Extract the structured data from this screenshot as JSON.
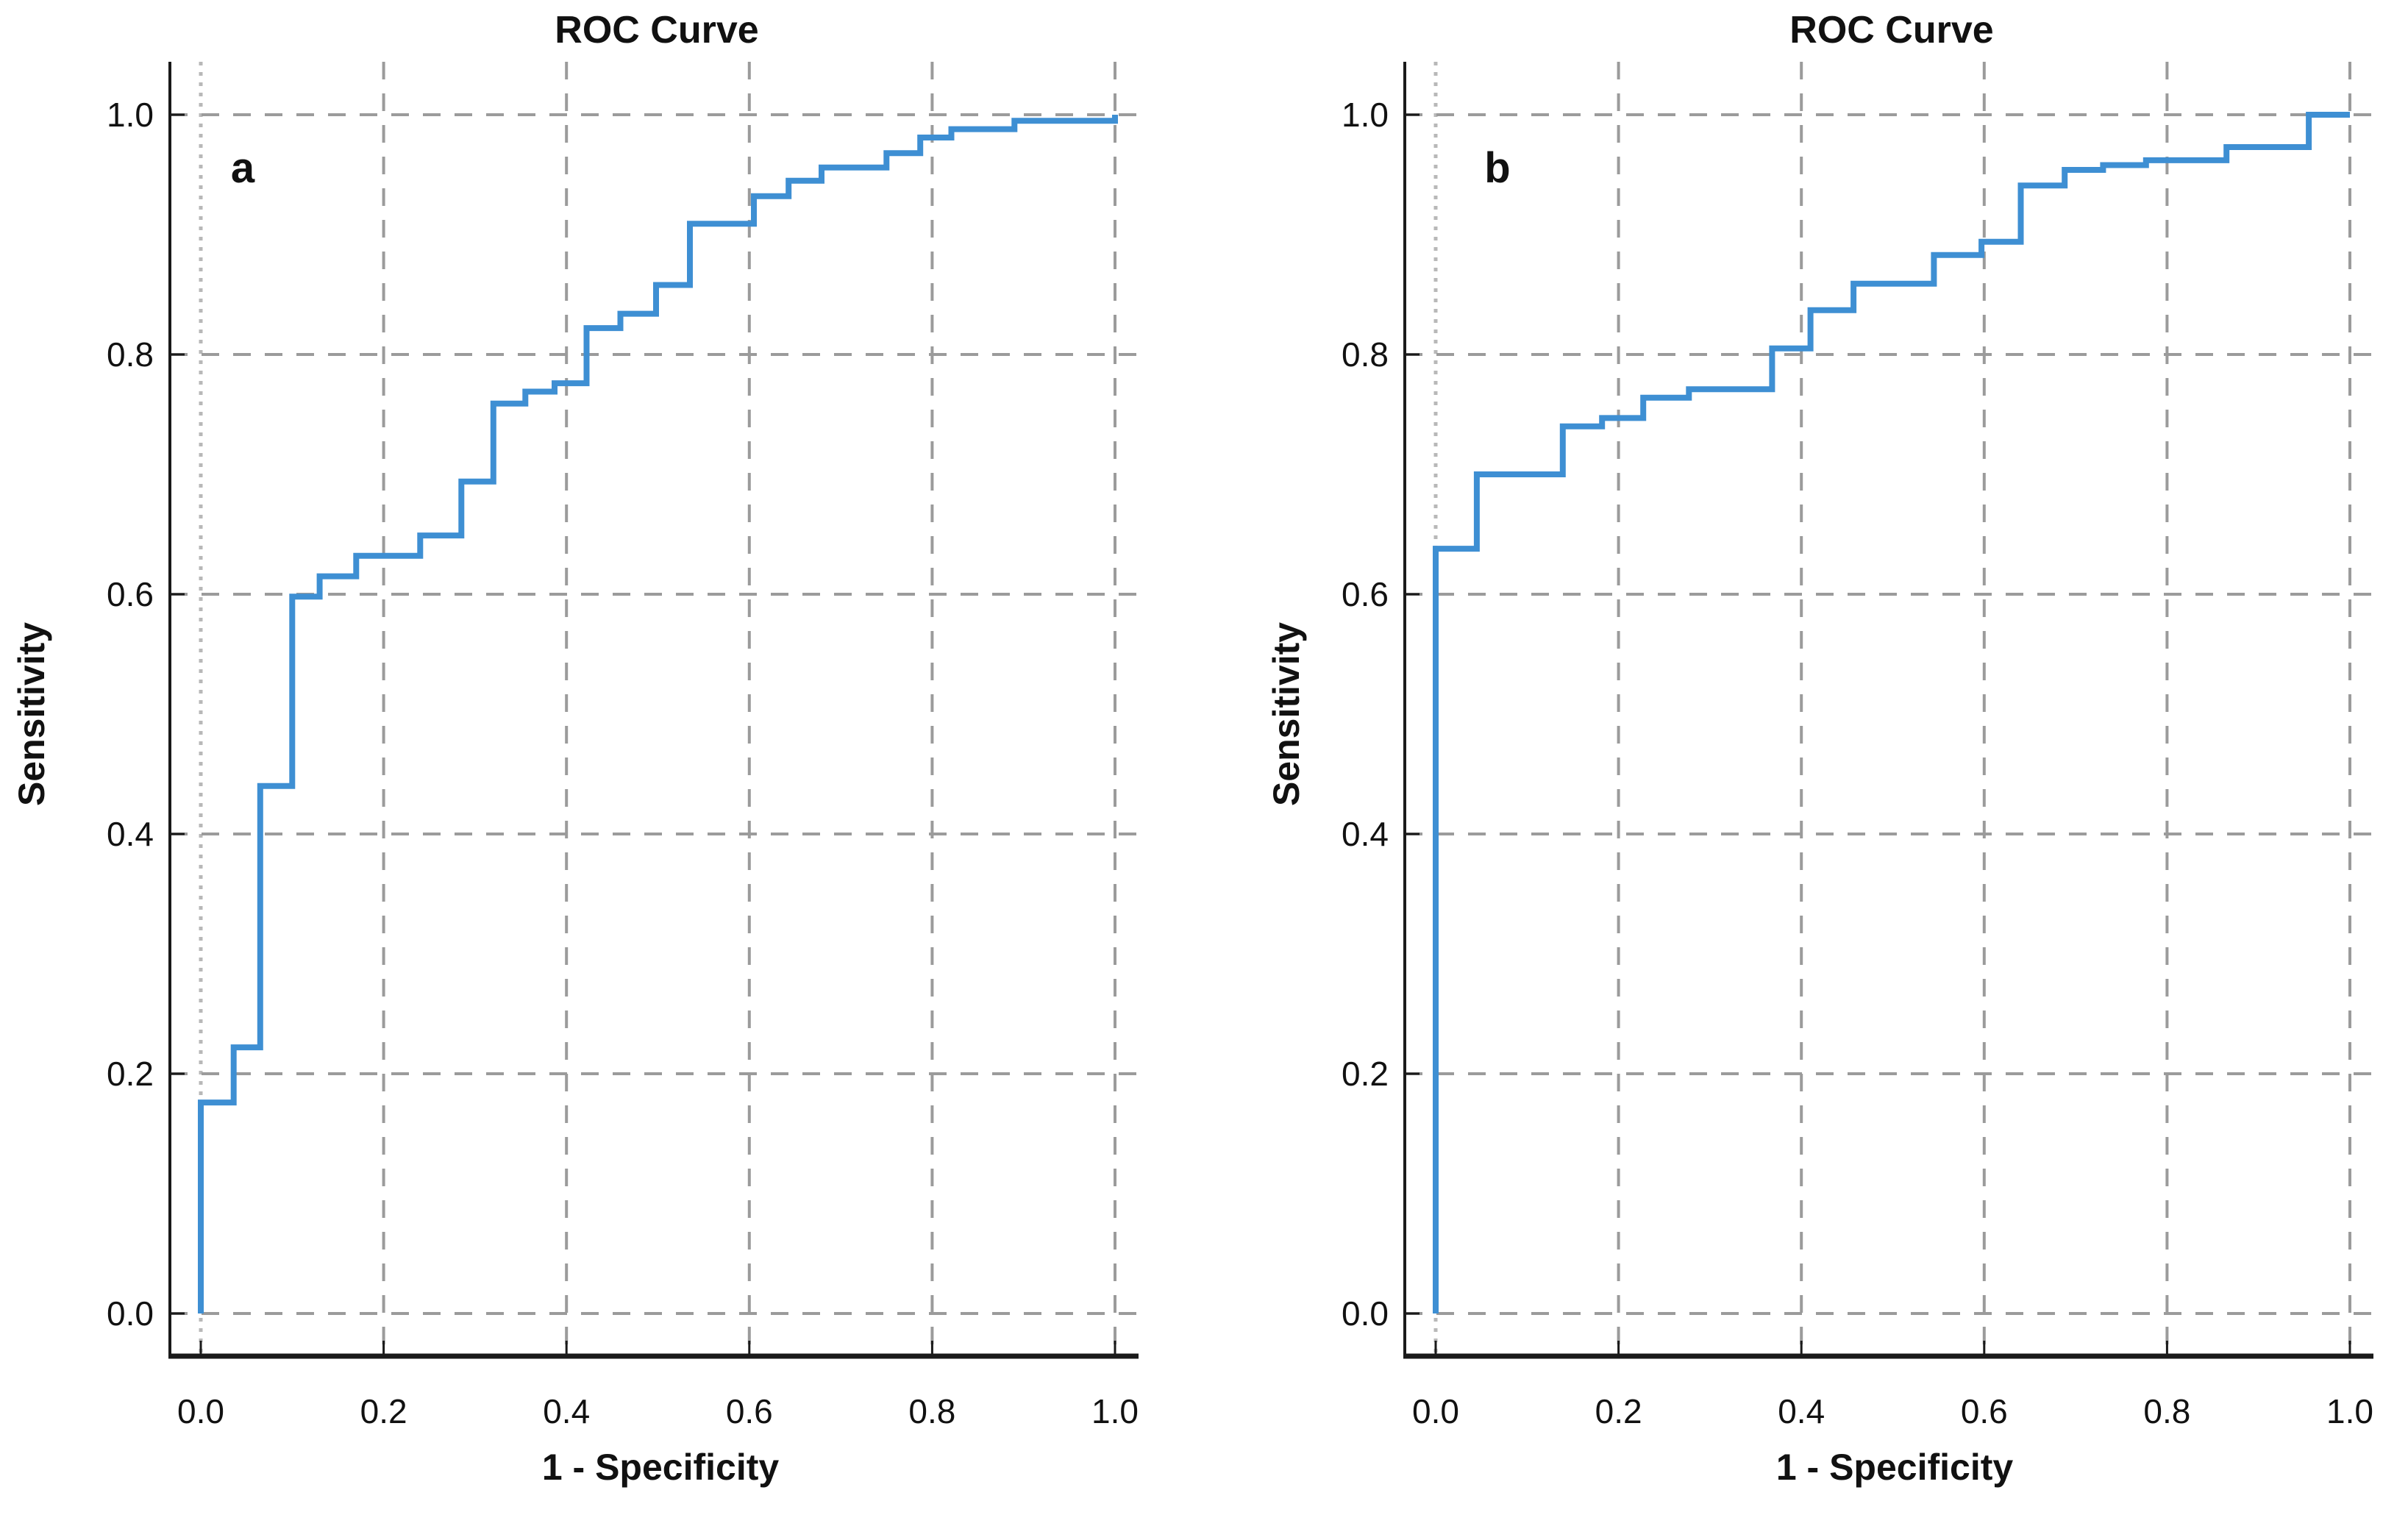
{
  "figure": {
    "background": "#ffffff",
    "text_color": "#111111",
    "gridline_color": "#9b9b9b",
    "zero_gridline_color": "#b8b8b8",
    "spine_color": "#1a1a1a"
  },
  "chart_data": [
    {
      "type": "line",
      "subtype": "roc_step_curve",
      "panel_label": "a",
      "title": "ROC Curve",
      "xlabel": "1 - Specificity",
      "ylabel": "Sensitivity",
      "xlim": [
        0.0,
        1.0
      ],
      "ylim": [
        0.0,
        1.0
      ],
      "xticks": [
        0.0,
        0.2,
        0.4,
        0.6,
        0.8,
        1.0
      ],
      "yticks": [
        0.0,
        0.2,
        0.4,
        0.6,
        0.8,
        1.0
      ],
      "xtick_labels": [
        "0.0",
        "0.2",
        "0.4",
        "0.6",
        "0.8",
        "1.0"
      ],
      "ytick_labels": [
        "0.0",
        "0.2",
        "0.4",
        "0.6",
        "0.8",
        "1.0"
      ],
      "grid": "dashed",
      "legend": "none",
      "line_color": "#3e8fd3",
      "points": [
        [
          0.0,
          0.0
        ],
        [
          0.0,
          0.176
        ],
        [
          0.036,
          0.176
        ],
        [
          0.036,
          0.222
        ],
        [
          0.065,
          0.222
        ],
        [
          0.065,
          0.44
        ],
        [
          0.1,
          0.44
        ],
        [
          0.1,
          0.598
        ],
        [
          0.13,
          0.598
        ],
        [
          0.13,
          0.615
        ],
        [
          0.17,
          0.615
        ],
        [
          0.17,
          0.632
        ],
        [
          0.24,
          0.632
        ],
        [
          0.24,
          0.649
        ],
        [
          0.285,
          0.649
        ],
        [
          0.285,
          0.694
        ],
        [
          0.32,
          0.694
        ],
        [
          0.32,
          0.759
        ],
        [
          0.355,
          0.759
        ],
        [
          0.355,
          0.769
        ],
        [
          0.387,
          0.769
        ],
        [
          0.387,
          0.776
        ],
        [
          0.422,
          0.776
        ],
        [
          0.422,
          0.822
        ],
        [
          0.459,
          0.822
        ],
        [
          0.459,
          0.834
        ],
        [
          0.498,
          0.834
        ],
        [
          0.498,
          0.858
        ],
        [
          0.535,
          0.858
        ],
        [
          0.535,
          0.909
        ],
        [
          0.605,
          0.909
        ],
        [
          0.605,
          0.932
        ],
        [
          0.643,
          0.932
        ],
        [
          0.643,
          0.945
        ],
        [
          0.679,
          0.945
        ],
        [
          0.679,
          0.956
        ],
        [
          0.75,
          0.956
        ],
        [
          0.75,
          0.968
        ],
        [
          0.787,
          0.968
        ],
        [
          0.787,
          0.981
        ],
        [
          0.821,
          0.981
        ],
        [
          0.821,
          0.988
        ],
        [
          0.89,
          0.988
        ],
        [
          0.89,
          0.995
        ],
        [
          1.0,
          0.995
        ],
        [
          1.0,
          1.0
        ]
      ]
    },
    {
      "type": "line",
      "subtype": "roc_step_curve",
      "panel_label": "b",
      "title": "ROC Curve",
      "xlabel": "1 - Specificity",
      "ylabel": "Sensitivity",
      "xlim": [
        0.0,
        1.0
      ],
      "ylim": [
        0.0,
        1.0
      ],
      "xticks": [
        0.0,
        0.2,
        0.4,
        0.6,
        0.8,
        1.0
      ],
      "yticks": [
        0.0,
        0.2,
        0.4,
        0.6,
        0.8,
        1.0
      ],
      "xtick_labels": [
        "0.0",
        "0.2",
        "0.4",
        "0.6",
        "0.8",
        "1.0"
      ],
      "ytick_labels": [
        "0.0",
        "0.2",
        "0.4",
        "0.6",
        "0.8",
        "1.0"
      ],
      "grid": "dashed",
      "legend": "none",
      "line_color": "#3e8fd3",
      "points": [
        [
          0.0,
          0.0
        ],
        [
          0.0,
          0.638
        ],
        [
          0.045,
          0.638
        ],
        [
          0.045,
          0.7
        ],
        [
          0.139,
          0.7
        ],
        [
          0.139,
          0.74
        ],
        [
          0.182,
          0.74
        ],
        [
          0.182,
          0.747
        ],
        [
          0.227,
          0.747
        ],
        [
          0.227,
          0.764
        ],
        [
          0.277,
          0.764
        ],
        [
          0.277,
          0.771
        ],
        [
          0.368,
          0.771
        ],
        [
          0.368,
          0.805
        ],
        [
          0.41,
          0.805
        ],
        [
          0.41,
          0.837
        ],
        [
          0.457,
          0.837
        ],
        [
          0.457,
          0.859
        ],
        [
          0.545,
          0.859
        ],
        [
          0.545,
          0.883
        ],
        [
          0.597,
          0.883
        ],
        [
          0.597,
          0.894
        ],
        [
          0.64,
          0.894
        ],
        [
          0.64,
          0.941
        ],
        [
          0.688,
          0.941
        ],
        [
          0.688,
          0.954
        ],
        [
          0.73,
          0.954
        ],
        [
          0.73,
          0.958
        ],
        [
          0.777,
          0.958
        ],
        [
          0.777,
          0.962
        ],
        [
          0.865,
          0.962
        ],
        [
          0.865,
          0.973
        ],
        [
          0.955,
          0.973
        ],
        [
          0.955,
          1.0
        ],
        [
          1.0,
          1.0
        ]
      ]
    }
  ]
}
